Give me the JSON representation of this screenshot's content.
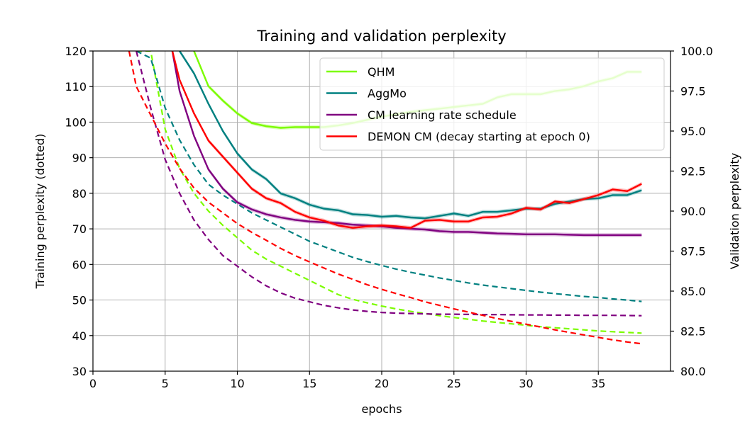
{
  "chart_data": {
    "type": "line",
    "title": "Training and validation perplexity",
    "xlabel": "epochs",
    "ylabel_left": "Training perplexity (dotted)",
    "ylabel_right": "Validation perplexity",
    "xlim": [
      0,
      40
    ],
    "ylim_left": [
      30,
      120
    ],
    "ylim_right": [
      80.0,
      100.0
    ],
    "x_ticks": [
      0,
      5,
      10,
      15,
      20,
      25,
      30,
      35
    ],
    "y_left_ticks": [
      30,
      40,
      50,
      60,
      70,
      80,
      90,
      100,
      110,
      120
    ],
    "y_right_ticks": [
      "80.0",
      "82.5",
      "85.0",
      "87.5",
      "90.0",
      "92.5",
      "95.0",
      "97.5",
      "100.0"
    ],
    "grid": true,
    "legend_position": "top-right",
    "series": [
      {
        "name": "QHM",
        "color": "#7cfc00",
        "validation": {
          "axis": "right",
          "x": [
            7,
            8,
            9,
            10,
            11,
            12,
            13,
            14,
            15,
            16,
            17,
            18,
            19,
            20,
            21,
            22,
            23,
            24,
            25,
            26,
            27,
            28,
            29,
            30,
            31,
            32,
            33,
            34,
            35,
            36,
            37,
            38
          ],
          "y": [
            100.0,
            97.8,
            96.9,
            96.1,
            95.5,
            95.3,
            95.2,
            95.25,
            95.25,
            95.25,
            95.35,
            95.5,
            95.7,
            95.9,
            96.05,
            96.2,
            96.3,
            96.4,
            96.5,
            96.6,
            96.7,
            97.1,
            97.3,
            97.3,
            97.3,
            97.5,
            97.6,
            97.8,
            98.1,
            98.3,
            98.7,
            98.7
          ]
        },
        "training": {
          "axis": "left",
          "x": [
            3,
            4,
            5,
            6,
            7,
            8,
            9,
            10,
            11,
            12,
            13,
            14,
            15,
            16,
            17,
            18,
            19,
            20,
            21,
            22,
            23,
            24,
            25,
            26,
            27,
            28,
            29,
            30,
            31,
            32,
            33,
            34,
            35,
            36,
            37,
            38
          ],
          "y": [
            120,
            120,
            98,
            87,
            80,
            75,
            71,
            67.5,
            64,
            61.5,
            59.5,
            57.5,
            55.5,
            53.5,
            51.5,
            50.2,
            49.2,
            48.3,
            47.5,
            46.8,
            46.2,
            45.6,
            45.1,
            44.6,
            44.1,
            43.7,
            43.3,
            42.9,
            42.5,
            42.2,
            41.9,
            41.6,
            41.3,
            41.1,
            40.9,
            40.7
          ]
        }
      },
      {
        "name": "AggMo",
        "color": "#008080",
        "validation": {
          "axis": "right",
          "x": [
            6,
            7,
            8,
            9,
            10,
            11,
            12,
            13,
            14,
            15,
            16,
            17,
            18,
            19,
            20,
            21,
            22,
            23,
            24,
            25,
            26,
            27,
            28,
            29,
            30,
            31,
            32,
            33,
            34,
            35,
            36,
            37,
            38
          ],
          "y": [
            100.0,
            98.6,
            96.7,
            95.0,
            93.6,
            92.6,
            92.0,
            91.1,
            90.8,
            90.4,
            90.15,
            90.05,
            89.8,
            89.75,
            89.65,
            89.7,
            89.6,
            89.55,
            89.7,
            89.85,
            89.7,
            89.95,
            89.95,
            90.05,
            90.15,
            90.15,
            90.45,
            90.6,
            90.75,
            90.8,
            91.0,
            91.0,
            91.3
          ]
        },
        "training": {
          "axis": "left",
          "x": [
            3,
            4,
            5,
            6,
            7,
            8,
            9,
            10,
            11,
            12,
            13,
            14,
            15,
            16,
            17,
            18,
            19,
            20,
            21,
            22,
            23,
            24,
            25,
            26,
            27,
            28,
            29,
            30,
            31,
            32,
            33,
            34,
            35,
            36,
            37,
            38
          ],
          "y": [
            120,
            118,
            104,
            95,
            88,
            82.5,
            79.5,
            77,
            74.5,
            72.5,
            70.5,
            68.5,
            66.5,
            65,
            63.5,
            62,
            60.8,
            59.7,
            58.7,
            57.8,
            57,
            56.2,
            55.5,
            54.8,
            54.2,
            53.7,
            53.2,
            52.7,
            52.2,
            51.8,
            51.4,
            51,
            50.7,
            50.3,
            50,
            49.6
          ]
        }
      },
      {
        "name": "CM learning rate schedule",
        "color": "#800080",
        "validation": {
          "axis": "right",
          "x": [
            5.5,
            6,
            7,
            8,
            9,
            10,
            11,
            12,
            13,
            14,
            15,
            16,
            17,
            18,
            19,
            20,
            21,
            22,
            23,
            24,
            25,
            26,
            27,
            28,
            29,
            30,
            31,
            32,
            33,
            34,
            35,
            36,
            37,
            38
          ],
          "y": [
            100.0,
            97.5,
            94.7,
            92.6,
            91.4,
            90.55,
            90.1,
            89.8,
            89.6,
            89.45,
            89.35,
            89.3,
            89.25,
            89.15,
            89.1,
            89.05,
            88.95,
            88.9,
            88.85,
            88.75,
            88.7,
            88.7,
            88.65,
            88.6,
            88.58,
            88.55,
            88.55,
            88.55,
            88.52,
            88.5,
            88.5,
            88.5,
            88.5,
            88.5
          ]
        },
        "training": {
          "axis": "left",
          "x": [
            3,
            4,
            5,
            6,
            7,
            8,
            9,
            10,
            11,
            12,
            13,
            14,
            15,
            16,
            17,
            18,
            19,
            20,
            21,
            22,
            23,
            24,
            25,
            26,
            27,
            28,
            29,
            30,
            31,
            32,
            33,
            34,
            35,
            36,
            37,
            38
          ],
          "y": [
            120,
            104,
            89.5,
            80,
            72.5,
            67,
            62.5,
            59.5,
            56.5,
            54,
            52,
            50.5,
            49.5,
            48.5,
            47.8,
            47.2,
            46.8,
            46.5,
            46.3,
            46.2,
            46.1,
            46,
            46,
            45.95,
            45.9,
            45.9,
            45.85,
            45.8,
            45.8,
            45.75,
            45.75,
            45.7,
            45.7,
            45.7,
            45.65,
            45.6
          ]
        }
      },
      {
        "name": "DEMON CM (decay starting at epoch 0)",
        "color": "#ff0000",
        "validation": {
          "axis": "right",
          "x": [
            5.5,
            6,
            7,
            8,
            9,
            10,
            11,
            12,
            13,
            14,
            15,
            16,
            17,
            18,
            19,
            20,
            21,
            22,
            23,
            24,
            25,
            26,
            27,
            28,
            29,
            30,
            31,
            32,
            33,
            34,
            35,
            36,
            37,
            38
          ],
          "y": [
            100.0,
            98.2,
            96.1,
            94.4,
            93.4,
            92.4,
            91.4,
            90.8,
            90.5,
            89.95,
            89.6,
            89.4,
            89.1,
            88.95,
            89.05,
            89.1,
            89.05,
            88.95,
            89.4,
            89.45,
            89.35,
            89.35,
            89.6,
            89.65,
            89.85,
            90.2,
            90.1,
            90.6,
            90.5,
            90.75,
            91.0,
            91.35,
            91.25,
            91.7
          ]
        },
        "training": {
          "axis": "left",
          "x": [
            2.5,
            3,
            4,
            5,
            6,
            7,
            8,
            9,
            10,
            11,
            12,
            13,
            14,
            15,
            16,
            17,
            18,
            19,
            20,
            21,
            22,
            23,
            24,
            25,
            26,
            27,
            28,
            29,
            30,
            31,
            32,
            33,
            34,
            35,
            36,
            37,
            38
          ],
          "y": [
            120,
            110,
            102,
            94,
            87,
            81.5,
            77.5,
            74.5,
            71.5,
            69,
            66.8,
            64.5,
            62.5,
            60.7,
            59,
            57.3,
            55.8,
            54.3,
            53,
            51.8,
            50.7,
            49.5,
            48.5,
            47.5,
            46.6,
            45.7,
            44.8,
            44,
            43.2,
            42.4,
            41.6,
            40.9,
            40.2,
            39.5,
            38.8,
            38.2,
            37.7
          ]
        }
      }
    ]
  }
}
